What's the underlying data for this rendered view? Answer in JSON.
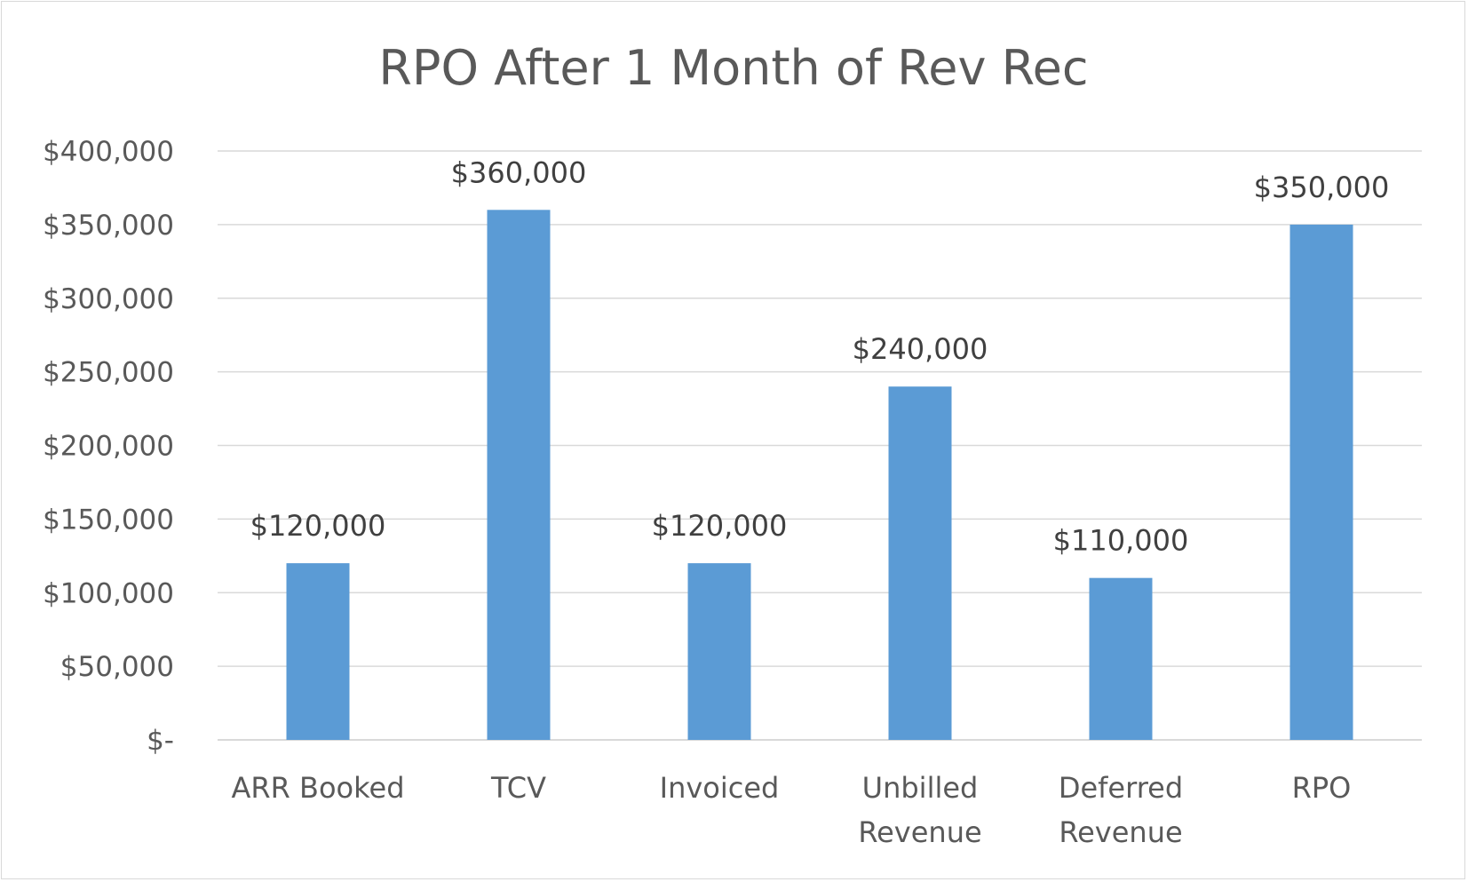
{
  "chart_data": {
    "type": "bar",
    "title": "RPO After 1 Month of Rev Rec",
    "categories": [
      [
        "ARR Booked"
      ],
      [
        "TCV"
      ],
      [
        "Invoiced"
      ],
      [
        "Unbilled",
        "Revenue"
      ],
      [
        "Deferred",
        "Revenue"
      ],
      [
        "RPO"
      ]
    ],
    "values": [
      120000,
      360000,
      120000,
      240000,
      110000,
      350000
    ],
    "data_labels": [
      "$120,000",
      "$360,000",
      "$120,000",
      "$240,000",
      "$110,000",
      "$350,000"
    ],
    "ylim": [
      0,
      400000
    ],
    "y_ticks": [
      0,
      50000,
      100000,
      150000,
      200000,
      250000,
      300000,
      350000,
      400000
    ],
    "y_tick_labels": [
      "$-",
      "$50,000",
      "$100,000",
      "$150,000",
      "$200,000",
      "$250,000",
      "$300,000",
      "$350,000",
      "$400,000"
    ],
    "grid": true,
    "legend": "none",
    "colors": {
      "bar": "#5b9bd5",
      "grid": "#d9d9d9",
      "text": "#595959"
    }
  }
}
